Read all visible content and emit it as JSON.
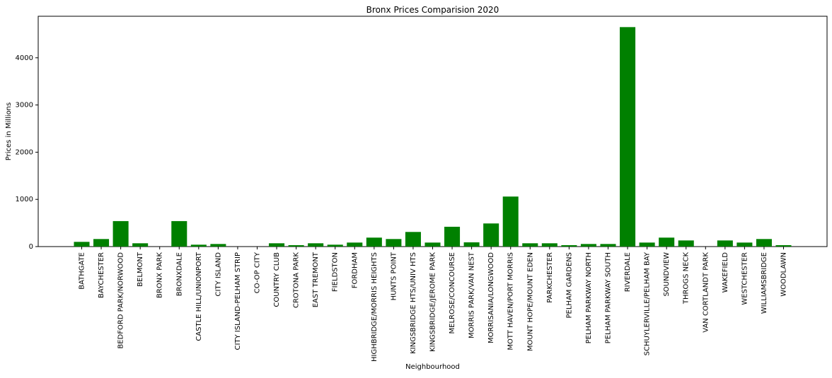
{
  "chart_data": {
    "type": "bar",
    "title": "Bronx Prices Comparision 2020",
    "xlabel": "Neighbourhood",
    "ylabel": "Prices in Millions",
    "ylim": [
      0,
      4880
    ],
    "yticks": [
      0,
      1000,
      2000,
      3000,
      4000
    ],
    "grid": false,
    "legend": "none",
    "bar_color": "#008000",
    "categories": [
      "BATHGATE",
      "BAYCHESTER",
      "BEDFORD PARK/NORWOOD",
      "BELMONT",
      "BRONX PARK",
      "BRONXDALE",
      "CASTLE HILL/UNIONPORT",
      "CITY ISLAND",
      "CITY ISLAND-PELHAM STRIP",
      "CO-OP CITY",
      "COUNTRY CLUB",
      "CROTONA PARK",
      "EAST TREMONT",
      "FIELDSTON",
      "FORDHAM",
      "HIGHBRIDGE/MORRIS HEIGHTS",
      "HUNTS POINT",
      "KINGSBRIDGE HTS/UNIV HTS",
      "KINGSBRIDGE/JEROME PARK",
      "MELROSE/CONCOURSE",
      "MORRIS PARK/VAN NEST",
      "MORRISANIA/LONGWOOD",
      "MOTT HAVEN/PORT MORRIS",
      "MOUNT HOPE/MOUNT EDEN",
      "PARKCHESTER",
      "PELHAM GARDENS",
      "PELHAM PARKWAY NORTH",
      "PELHAM PARKWAY SOUTH",
      "RIVERDALE",
      "SCHUYLERVILLE/PELHAM BAY",
      "SOUNDVIEW",
      "THROGS NECK",
      "VAN CORTLANDT PARK",
      "WAKEFIELD",
      "WESTCHESTER",
      "WILLIAMSBRIDGE",
      "WOODLAWN"
    ],
    "values": [
      100,
      160,
      540,
      70,
      0,
      540,
      40,
      55,
      0,
      0,
      70,
      30,
      70,
      40,
      85,
      190,
      160,
      310,
      85,
      420,
      90,
      490,
      1060,
      70,
      70,
      30,
      55,
      55,
      4650,
      85,
      190,
      130,
      0,
      130,
      85,
      160,
      30
    ]
  }
}
